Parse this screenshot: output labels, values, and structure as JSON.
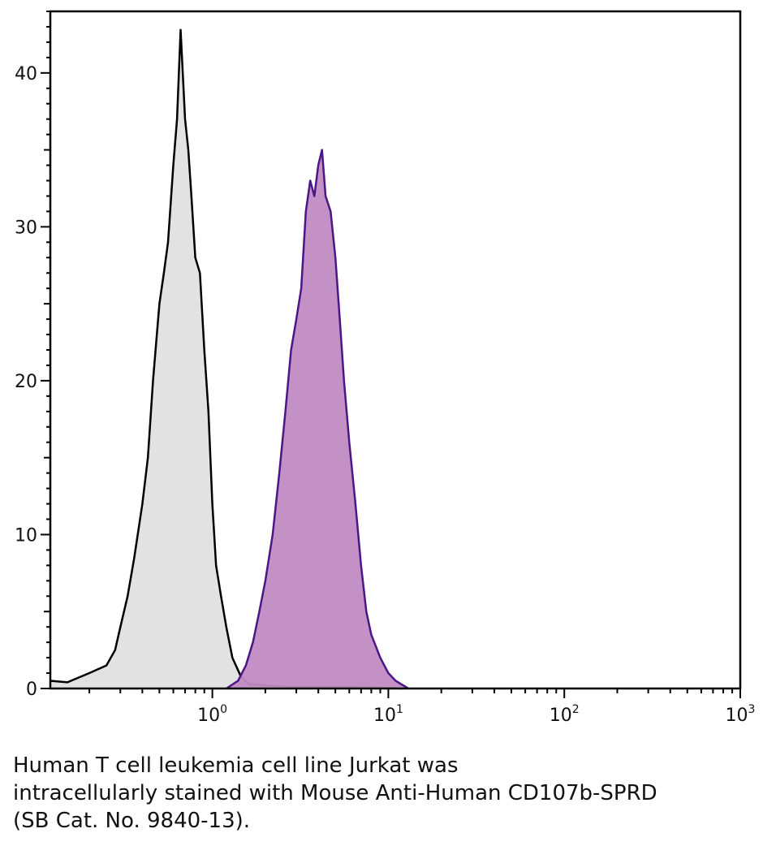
{
  "chart_data": {
    "type": "area",
    "xscale": "log",
    "xlim": [
      0.12,
      1000
    ],
    "ylim": [
      0,
      44
    ],
    "y_ticks": [
      0,
      10,
      20,
      30,
      40
    ],
    "x_ticks": [
      {
        "value": 1,
        "base": "10",
        "exp": "0"
      },
      {
        "value": 10,
        "base": "10",
        "exp": "1"
      },
      {
        "value": 100,
        "base": "10",
        "exp": "2"
      },
      {
        "value": 1000,
        "base": "10",
        "exp": "3"
      }
    ],
    "grid": false,
    "series": [
      {
        "fill": "#e0e0e0",
        "stroke": "#000000",
        "points": [
          [
            0.12,
            0.5
          ],
          [
            0.15,
            0.4
          ],
          [
            0.2,
            1
          ],
          [
            0.25,
            1.5
          ],
          [
            0.28,
            2.5
          ],
          [
            0.3,
            4
          ],
          [
            0.33,
            6
          ],
          [
            0.36,
            8.5
          ],
          [
            0.4,
            12
          ],
          [
            0.43,
            15
          ],
          [
            0.46,
            20
          ],
          [
            0.5,
            25
          ],
          [
            0.53,
            27
          ],
          [
            0.56,
            29
          ],
          [
            0.6,
            34
          ],
          [
            0.63,
            37
          ],
          [
            0.66,
            42.8
          ],
          [
            0.7,
            37
          ],
          [
            0.73,
            35
          ],
          [
            0.76,
            32
          ],
          [
            0.8,
            28
          ],
          [
            0.85,
            27
          ],
          [
            0.9,
            22
          ],
          [
            0.95,
            18
          ],
          [
            1.0,
            12
          ],
          [
            1.05,
            8
          ],
          [
            1.12,
            6
          ],
          [
            1.2,
            4
          ],
          [
            1.3,
            2
          ],
          [
            1.45,
            0.8
          ],
          [
            1.6,
            0.3
          ],
          [
            2.0,
            0.2
          ],
          [
            3.0,
            0.1
          ],
          [
            5.0,
            0.1
          ],
          [
            10,
            0.05
          ],
          [
            12,
            0
          ]
        ]
      },
      {
        "fill": "#c08bc2",
        "stroke": "#4b1787",
        "points": [
          [
            1.2,
            0
          ],
          [
            1.4,
            0.5
          ],
          [
            1.55,
            1.5
          ],
          [
            1.7,
            3
          ],
          [
            1.85,
            5
          ],
          [
            2.0,
            7
          ],
          [
            2.2,
            10
          ],
          [
            2.4,
            14
          ],
          [
            2.6,
            18
          ],
          [
            2.8,
            22
          ],
          [
            3.0,
            24
          ],
          [
            3.2,
            26
          ],
          [
            3.4,
            31
          ],
          [
            3.6,
            33
          ],
          [
            3.8,
            32
          ],
          [
            4.0,
            34
          ],
          [
            4.2,
            35
          ],
          [
            4.4,
            32
          ],
          [
            4.7,
            31
          ],
          [
            5.0,
            28
          ],
          [
            5.3,
            24
          ],
          [
            5.6,
            20
          ],
          [
            6.0,
            16
          ],
          [
            6.5,
            12
          ],
          [
            7.0,
            8
          ],
          [
            7.5,
            5
          ],
          [
            8.0,
            3.5
          ],
          [
            9.0,
            2
          ],
          [
            10,
            1
          ],
          [
            11,
            0.5
          ],
          [
            13,
            0
          ]
        ]
      }
    ]
  },
  "caption": {
    "line1": "Human T cell leukemia cell line Jurkat was",
    "line2": "intracellularly stained with Mouse Anti-Human CD107b-SPRD",
    "line3": "(SB Cat. No. 9840-13)."
  }
}
